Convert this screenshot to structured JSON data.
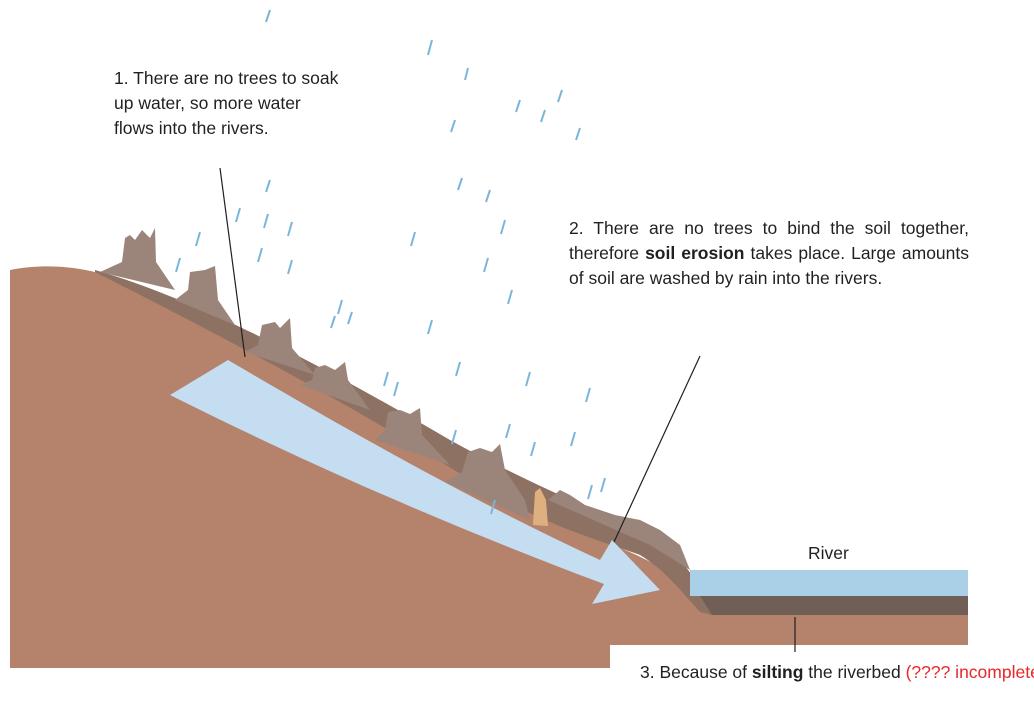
{
  "annotations": [
    {
      "parts": [
        "1. There are no trees to soak up water, so more water flows into the rivers."
      ]
    },
    {
      "parts": [
        "2. There are no trees to bind the soil together, therefore ",
        "soil erosion",
        " takes place. Large amounts of soil are washed by rain into the rivers."
      ]
    },
    {
      "parts": [
        "3. Because of ",
        "silting",
        " the riverbed ",
        "(???? incomplete)"
      ]
    }
  ],
  "river_label": "River"
}
